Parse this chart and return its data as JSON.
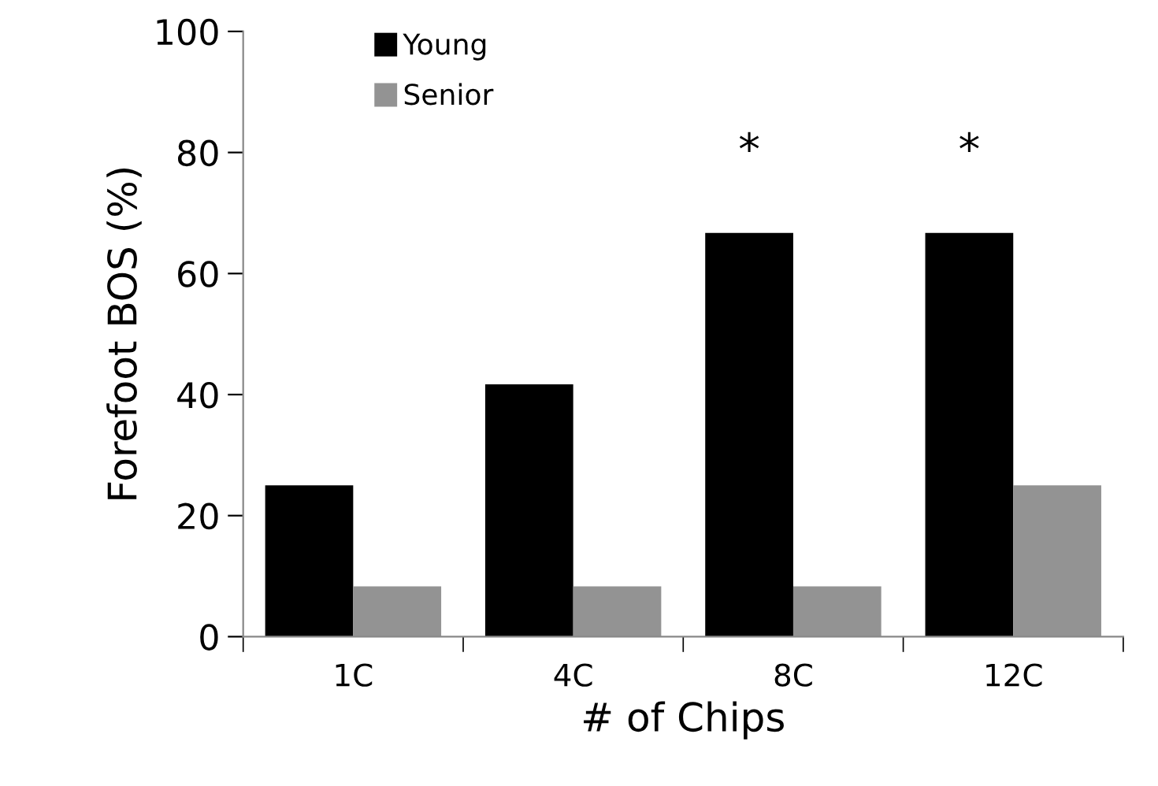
{
  "chart_data": {
    "type": "bar",
    "xlabel": "# of Chips",
    "ylabel": "Forefoot BOS (%)",
    "categories": [
      "1C",
      "4C",
      "8C",
      "12C"
    ],
    "series": [
      {
        "name": "Young",
        "color": "#000000",
        "values": [
          25,
          41.7,
          66.7,
          66.7
        ]
      },
      {
        "name": "Senior",
        "color": "#939393",
        "values": [
          8.3,
          8.3,
          8.3,
          25
        ]
      }
    ],
    "ylim": [
      0,
      100
    ],
    "yticks": [
      0,
      20,
      40,
      60,
      80,
      100
    ],
    "grid": false,
    "legend": "top left",
    "annotations": [
      "*",
      "*"
    ]
  }
}
